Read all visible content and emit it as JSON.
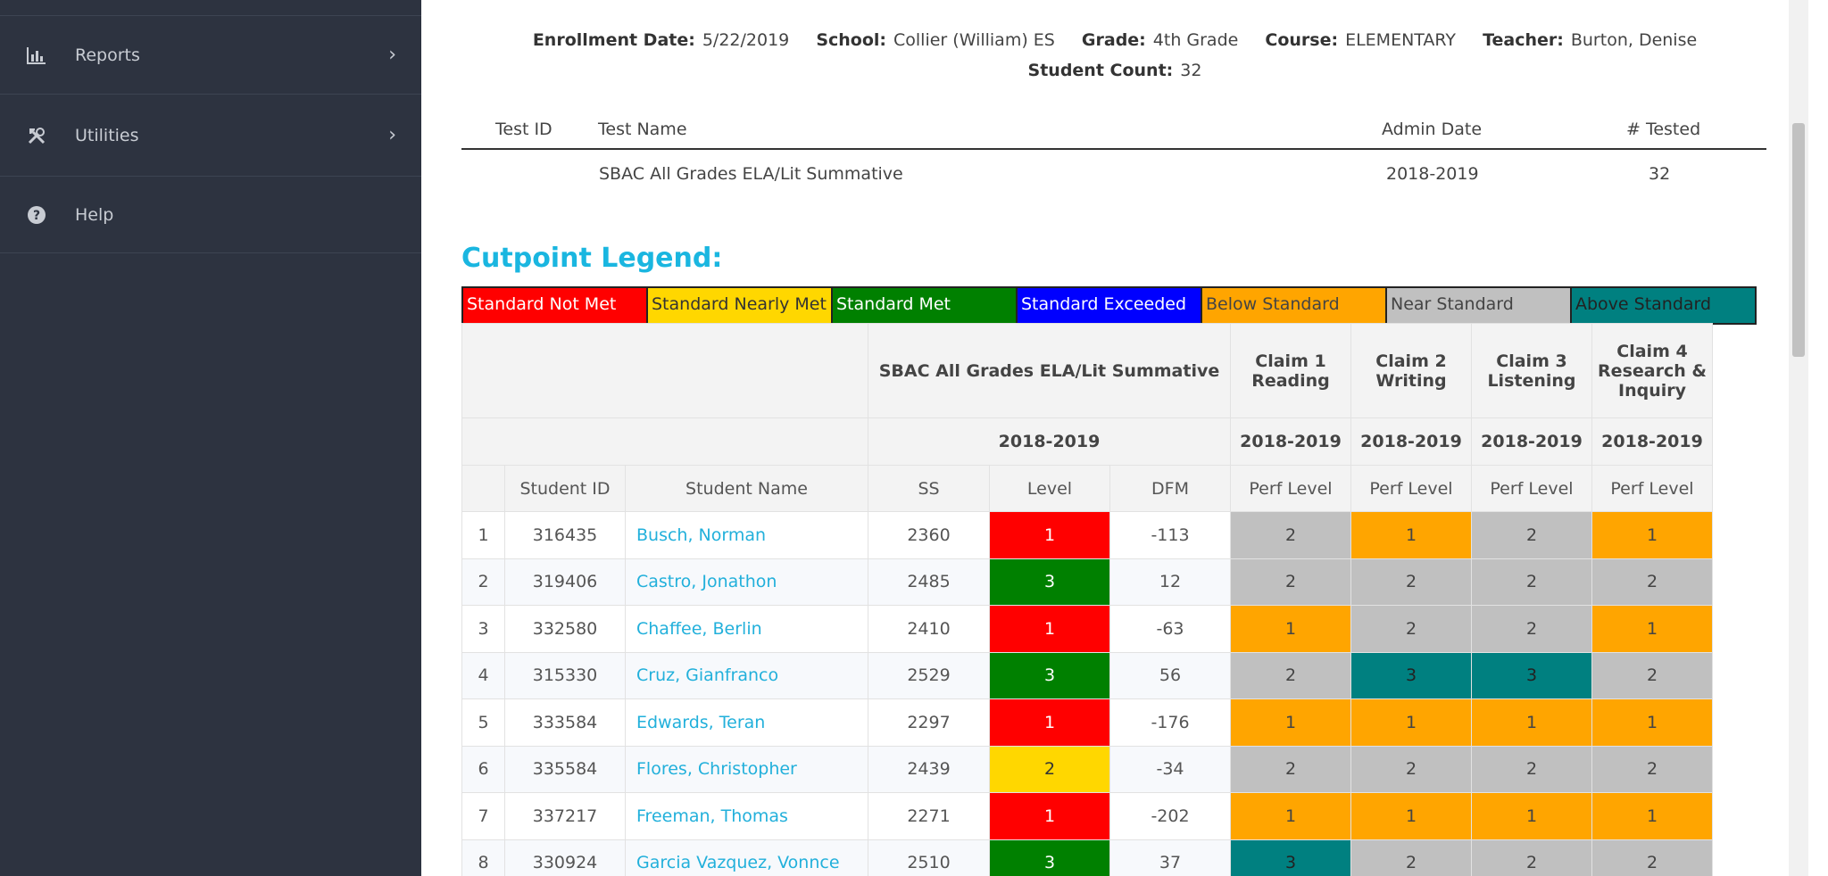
{
  "sidebar": {
    "items": [
      {
        "label": "Reports",
        "icon": "bar-chart-icon"
      },
      {
        "label": "Utilities",
        "icon": "tools-icon"
      },
      {
        "label": "Help",
        "icon": "question-circle-icon"
      }
    ]
  },
  "info": {
    "enrollment_label": "Enrollment Date:",
    "enrollment_value": "5/22/2019",
    "school_label": "School:",
    "school_value": "Collier (William) ES",
    "grade_label": "Grade:",
    "grade_value": "4th Grade",
    "course_label": "Course:",
    "course_value": "ELEMENTARY",
    "teacher_label": "Teacher:",
    "teacher_value": "Burton, Denise",
    "count_label": "Student Count:",
    "count_value": "32"
  },
  "tests": {
    "headers": {
      "test_id": "Test ID",
      "test_name": "Test Name",
      "admin_date": "Admin Date",
      "tested": "# Tested"
    },
    "row": {
      "test_id": "",
      "test_name": "SBAC All Grades ELA/Lit Summative",
      "admin_date": "2018-2019",
      "tested": "32"
    }
  },
  "legend": {
    "title": "Cutpoint Legend:",
    "items": [
      {
        "label": "Standard Not Met",
        "color": "#ff0000"
      },
      {
        "label": "Standard Nearly Met",
        "color": "#ffd700"
      },
      {
        "label": "Standard Met",
        "color": "#008000"
      },
      {
        "label": "Standard Exceeded",
        "color": "#0000ff"
      },
      {
        "label": "Below Standard",
        "color": "#ffa500"
      },
      {
        "label": "Near Standard",
        "color": "#c0c0c0"
      },
      {
        "label": "Above Standard",
        "color": "#008080"
      }
    ]
  },
  "table": {
    "group_headers": {
      "summative": "SBAC All Grades ELA/Lit Summative",
      "claim1": "Claim 1 Reading",
      "claim2": "Claim 2 Writing",
      "claim3": "Claim 3 Listening",
      "claim4": "Claim 4 Research & Inquiry"
    },
    "years": {
      "summative": "2018-2019",
      "claim1": "2018-2019",
      "claim2": "2018-2019",
      "claim3": "2018-2019",
      "claim4": "2018-2019"
    },
    "columns": {
      "num": "",
      "student_id": "Student ID",
      "student_name": "Student Name",
      "ss": "SS",
      "level": "Level",
      "dfm": "DFM",
      "c1": "Perf Level",
      "c2": "Perf Level",
      "c3": "Perf Level",
      "c4": "Perf Level"
    },
    "rows": [
      {
        "num": "1",
        "id": "316435",
        "name": "Busch, Norman",
        "ss": "2360",
        "level": "1",
        "dfm": "-113",
        "c1": "2",
        "c2": "1",
        "c3": "2",
        "c4": "1"
      },
      {
        "num": "2",
        "id": "319406",
        "name": "Castro, Jonathon",
        "ss": "2485",
        "level": "3",
        "dfm": "12",
        "c1": "2",
        "c2": "2",
        "c3": "2",
        "c4": "2"
      },
      {
        "num": "3",
        "id": "332580",
        "name": "Chaffee, Berlin",
        "ss": "2410",
        "level": "1",
        "dfm": "-63",
        "c1": "1",
        "c2": "2",
        "c3": "2",
        "c4": "1"
      },
      {
        "num": "4",
        "id": "315330",
        "name": "Cruz, Gianfranco",
        "ss": "2529",
        "level": "3",
        "dfm": "56",
        "c1": "2",
        "c2": "3",
        "c3": "3",
        "c4": "2"
      },
      {
        "num": "5",
        "id": "333584",
        "name": "Edwards, Teran",
        "ss": "2297",
        "level": "1",
        "dfm": "-176",
        "c1": "1",
        "c2": "1",
        "c3": "1",
        "c4": "1"
      },
      {
        "num": "6",
        "id": "335584",
        "name": "Flores, Christopher",
        "ss": "2439",
        "level": "2",
        "dfm": "-34",
        "c1": "2",
        "c2": "2",
        "c3": "2",
        "c4": "2"
      },
      {
        "num": "7",
        "id": "337217",
        "name": "Freeman, Thomas",
        "ss": "2271",
        "level": "1",
        "dfm": "-202",
        "c1": "1",
        "c2": "1",
        "c3": "1",
        "c4": "1"
      },
      {
        "num": "8",
        "id": "330924",
        "name": "Garcia Vazquez, Vonnce",
        "ss": "2510",
        "level": "3",
        "dfm": "37",
        "c1": "3",
        "c2": "2",
        "c3": "2",
        "c4": "2"
      }
    ]
  }
}
